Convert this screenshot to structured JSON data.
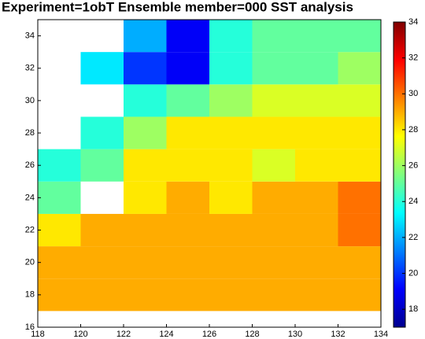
{
  "chart_data": {
    "type": "heatmap",
    "title": "Experiment=1obT  Ensemble member=000  SST analysis",
    "x": [
      119,
      121,
      123,
      125,
      127,
      129,
      131,
      133
    ],
    "y": [
      18,
      20,
      22,
      24,
      26,
      28,
      30,
      32,
      34
    ],
    "z": [
      [
        29,
        29,
        29,
        29,
        29,
        29,
        29,
        29
      ],
      [
        29,
        29,
        29,
        29,
        29,
        29,
        29,
        29
      ],
      [
        28,
        29,
        29,
        29,
        29,
        29,
        29,
        30
      ],
      [
        25,
        null,
        28,
        29,
        28,
        29,
        29,
        30
      ],
      [
        24,
        25,
        28,
        28,
        28,
        27,
        28,
        28
      ],
      [
        null,
        24,
        26,
        28,
        28,
        28,
        28,
        28
      ],
      [
        null,
        null,
        24,
        25,
        26,
        27,
        27,
        27
      ],
      [
        null,
        23,
        20,
        19,
        24,
        25,
        25,
        26
      ],
      [
        null,
        null,
        22,
        19,
        24,
        25,
        25,
        25
      ]
    ],
    "xlim": [
      118,
      134
    ],
    "ylim": [
      16,
      35
    ],
    "xticks": [
      118,
      120,
      122,
      124,
      126,
      128,
      130,
      132,
      134
    ],
    "yticks": [
      16,
      18,
      20,
      22,
      24,
      26,
      28,
      30,
      32,
      34
    ],
    "colormap": "jet",
    "clim": [
      17,
      34
    ],
    "cticks": [
      18,
      20,
      22,
      24,
      26,
      28,
      30,
      32,
      34
    ]
  }
}
